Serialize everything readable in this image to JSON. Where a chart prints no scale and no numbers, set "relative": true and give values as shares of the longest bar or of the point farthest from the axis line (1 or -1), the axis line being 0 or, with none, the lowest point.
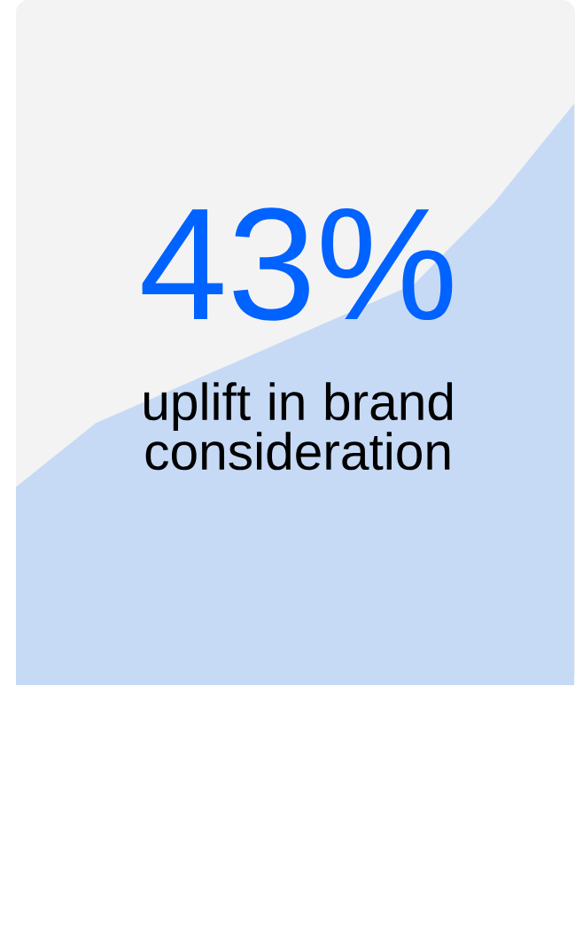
{
  "chart_data": {
    "type": "area",
    "relative": true,
    "categories": [
      null,
      null,
      null,
      null,
      null,
      null,
      null,
      null
    ],
    "series": [
      {
        "color": "#c6daf6",
        "values": [
          0.34,
          0.45,
          0.51,
          0.57,
          0.63,
          0.69,
          0.83,
          1.0
        ]
      }
    ],
    "annotations": [
      "43%",
      "uplift in brand consideration"
    ]
  }
}
